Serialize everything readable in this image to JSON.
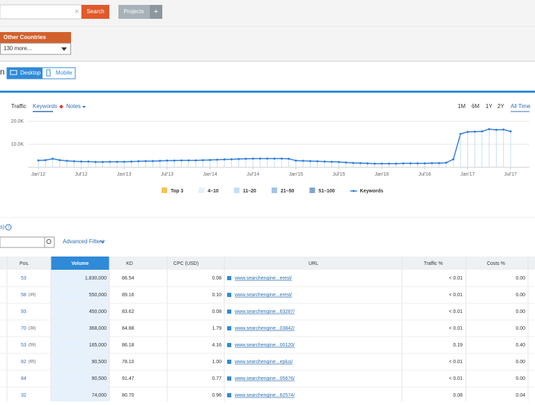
{
  "toolbar": {
    "search_button": "Search",
    "projects_button": "Projects",
    "add_button": "+"
  },
  "region": {
    "title": "Other Countries",
    "dropdown": "130 more..."
  },
  "device": {
    "heading": "n",
    "desktop": "Desktop",
    "mobile": "Mobile"
  },
  "chart_tabs": [
    "Traffic",
    "Keywords",
    "Notes"
  ],
  "ranges": [
    "1M",
    "6M",
    "1Y",
    "2Y",
    "All Time"
  ],
  "chart_data": {
    "type": "line",
    "x": [
      "Jan'12",
      null,
      null,
      null,
      null,
      null,
      "Jul'12",
      null,
      null,
      null,
      null,
      null,
      "Jan'13",
      null,
      null,
      null,
      null,
      null,
      "Jul'13",
      null,
      null,
      null,
      null,
      null,
      "Jan'14",
      null,
      null,
      null,
      null,
      null,
      "Jul'14",
      null,
      null,
      null,
      null,
      null,
      "Jan'15",
      null,
      null,
      null,
      null,
      null,
      "Jul'15",
      null,
      null,
      null,
      null,
      null,
      "Jan'16",
      null,
      null,
      null,
      null,
      null,
      "Jul'16",
      null,
      null,
      null,
      null,
      null,
      "Jan'17",
      null,
      null,
      null,
      null,
      null,
      "Jul'17"
    ],
    "series": [
      {
        "name": "Keywords",
        "color": "#2f7ed8",
        "values": [
          3000,
          3100,
          3700,
          3100,
          2800,
          2600,
          2500,
          2500,
          2300,
          2300,
          2400,
          2400,
          2400,
          2500,
          2600,
          2700,
          2700,
          2800,
          2900,
          2900,
          3000,
          3000,
          3000,
          3100,
          3200,
          3300,
          3400,
          3500,
          3600,
          3700,
          3800,
          3800,
          3800,
          3800,
          3800,
          3700,
          2900,
          2800,
          2700,
          2600,
          2500,
          2400,
          2300,
          2100,
          1900,
          1800,
          1700,
          1600,
          1600,
          1600,
          1600,
          1700,
          1700,
          1700,
          1700,
          1800,
          1800,
          2000,
          3500,
          14500,
          15400,
          15500,
          15600,
          16600,
          16300,
          16400,
          15600
        ]
      }
    ],
    "legend": [
      {
        "name": "Top 3",
        "color": "#f5c452"
      },
      {
        "name": "4–10",
        "color": "#e3f0fa"
      },
      {
        "name": "11–20",
        "color": "#c5def5"
      },
      {
        "name": "21–50",
        "color": "#9dc3e6"
      },
      {
        "name": "51–100",
        "color": "#7fa8cf"
      }
    ],
    "ylim": [
      0,
      20000
    ],
    "yticks": [
      {
        "value": 10000,
        "label": "10.0K"
      },
      {
        "value": 20000,
        "label": "20.0K"
      }
    ],
    "grid": true
  },
  "filters": {
    "count": "s)",
    "info": "i",
    "advanced": "Advanced Filters"
  },
  "table": {
    "columns": [
      "Pos.",
      "Volume",
      "KD",
      "CPC (USD)",
      "URL",
      "Traffic %",
      "Costs %"
    ],
    "rows": [
      {
        "pos": "53",
        "volume": "1,830,000",
        "kd": "86.54",
        "cpc": "0.08",
        "url": "www.searchengine...erest/",
        "traffic": "< 0.01",
        "costs": "0.00"
      },
      {
        "pos": "58",
        "prev": "(49)",
        "volume": "550,000",
        "kd": "89.16",
        "cpc": "0.10",
        "url": "www.searchengine...erest/",
        "traffic": "< 0.01",
        "costs": "0.00"
      },
      {
        "pos": "93",
        "volume": "450,000",
        "kd": "83.62",
        "cpc": "0.08",
        "url": "www.searchengine...63287/",
        "traffic": "< 0.01",
        "costs": "0.00"
      },
      {
        "pos": "70",
        "prev": "(38)",
        "volume": "368,000",
        "kd": "84.88",
        "cpc": "1.79",
        "url": "www.searchengine...03842/",
        "traffic": "< 0.01",
        "costs": "0.00"
      },
      {
        "pos": "53",
        "prev": "(59)",
        "volume": "165,000",
        "kd": "86.18",
        "cpc": "4.16",
        "url": "www.searchengine...00120/",
        "traffic": "0.19",
        "costs": "0.40"
      },
      {
        "pos": "82",
        "prev": "(65)",
        "volume": "90,500",
        "kd": "78.10",
        "cpc": "1.00",
        "url": "www.searchengine...eplus/",
        "traffic": "< 0.01",
        "costs": "0.00"
      },
      {
        "pos": "84",
        "volume": "90,500",
        "kd": "91.47",
        "cpc": "0.77",
        "url": "www.searchengine...05676/",
        "traffic": "< 0.01",
        "costs": "0.00"
      },
      {
        "pos": "32",
        "volume": "74,000",
        "kd": "80.70",
        "cpc": "0.96",
        "url": "www.searchengine...62574/",
        "traffic": "0.08",
        "costs": "0.04"
      }
    ]
  }
}
